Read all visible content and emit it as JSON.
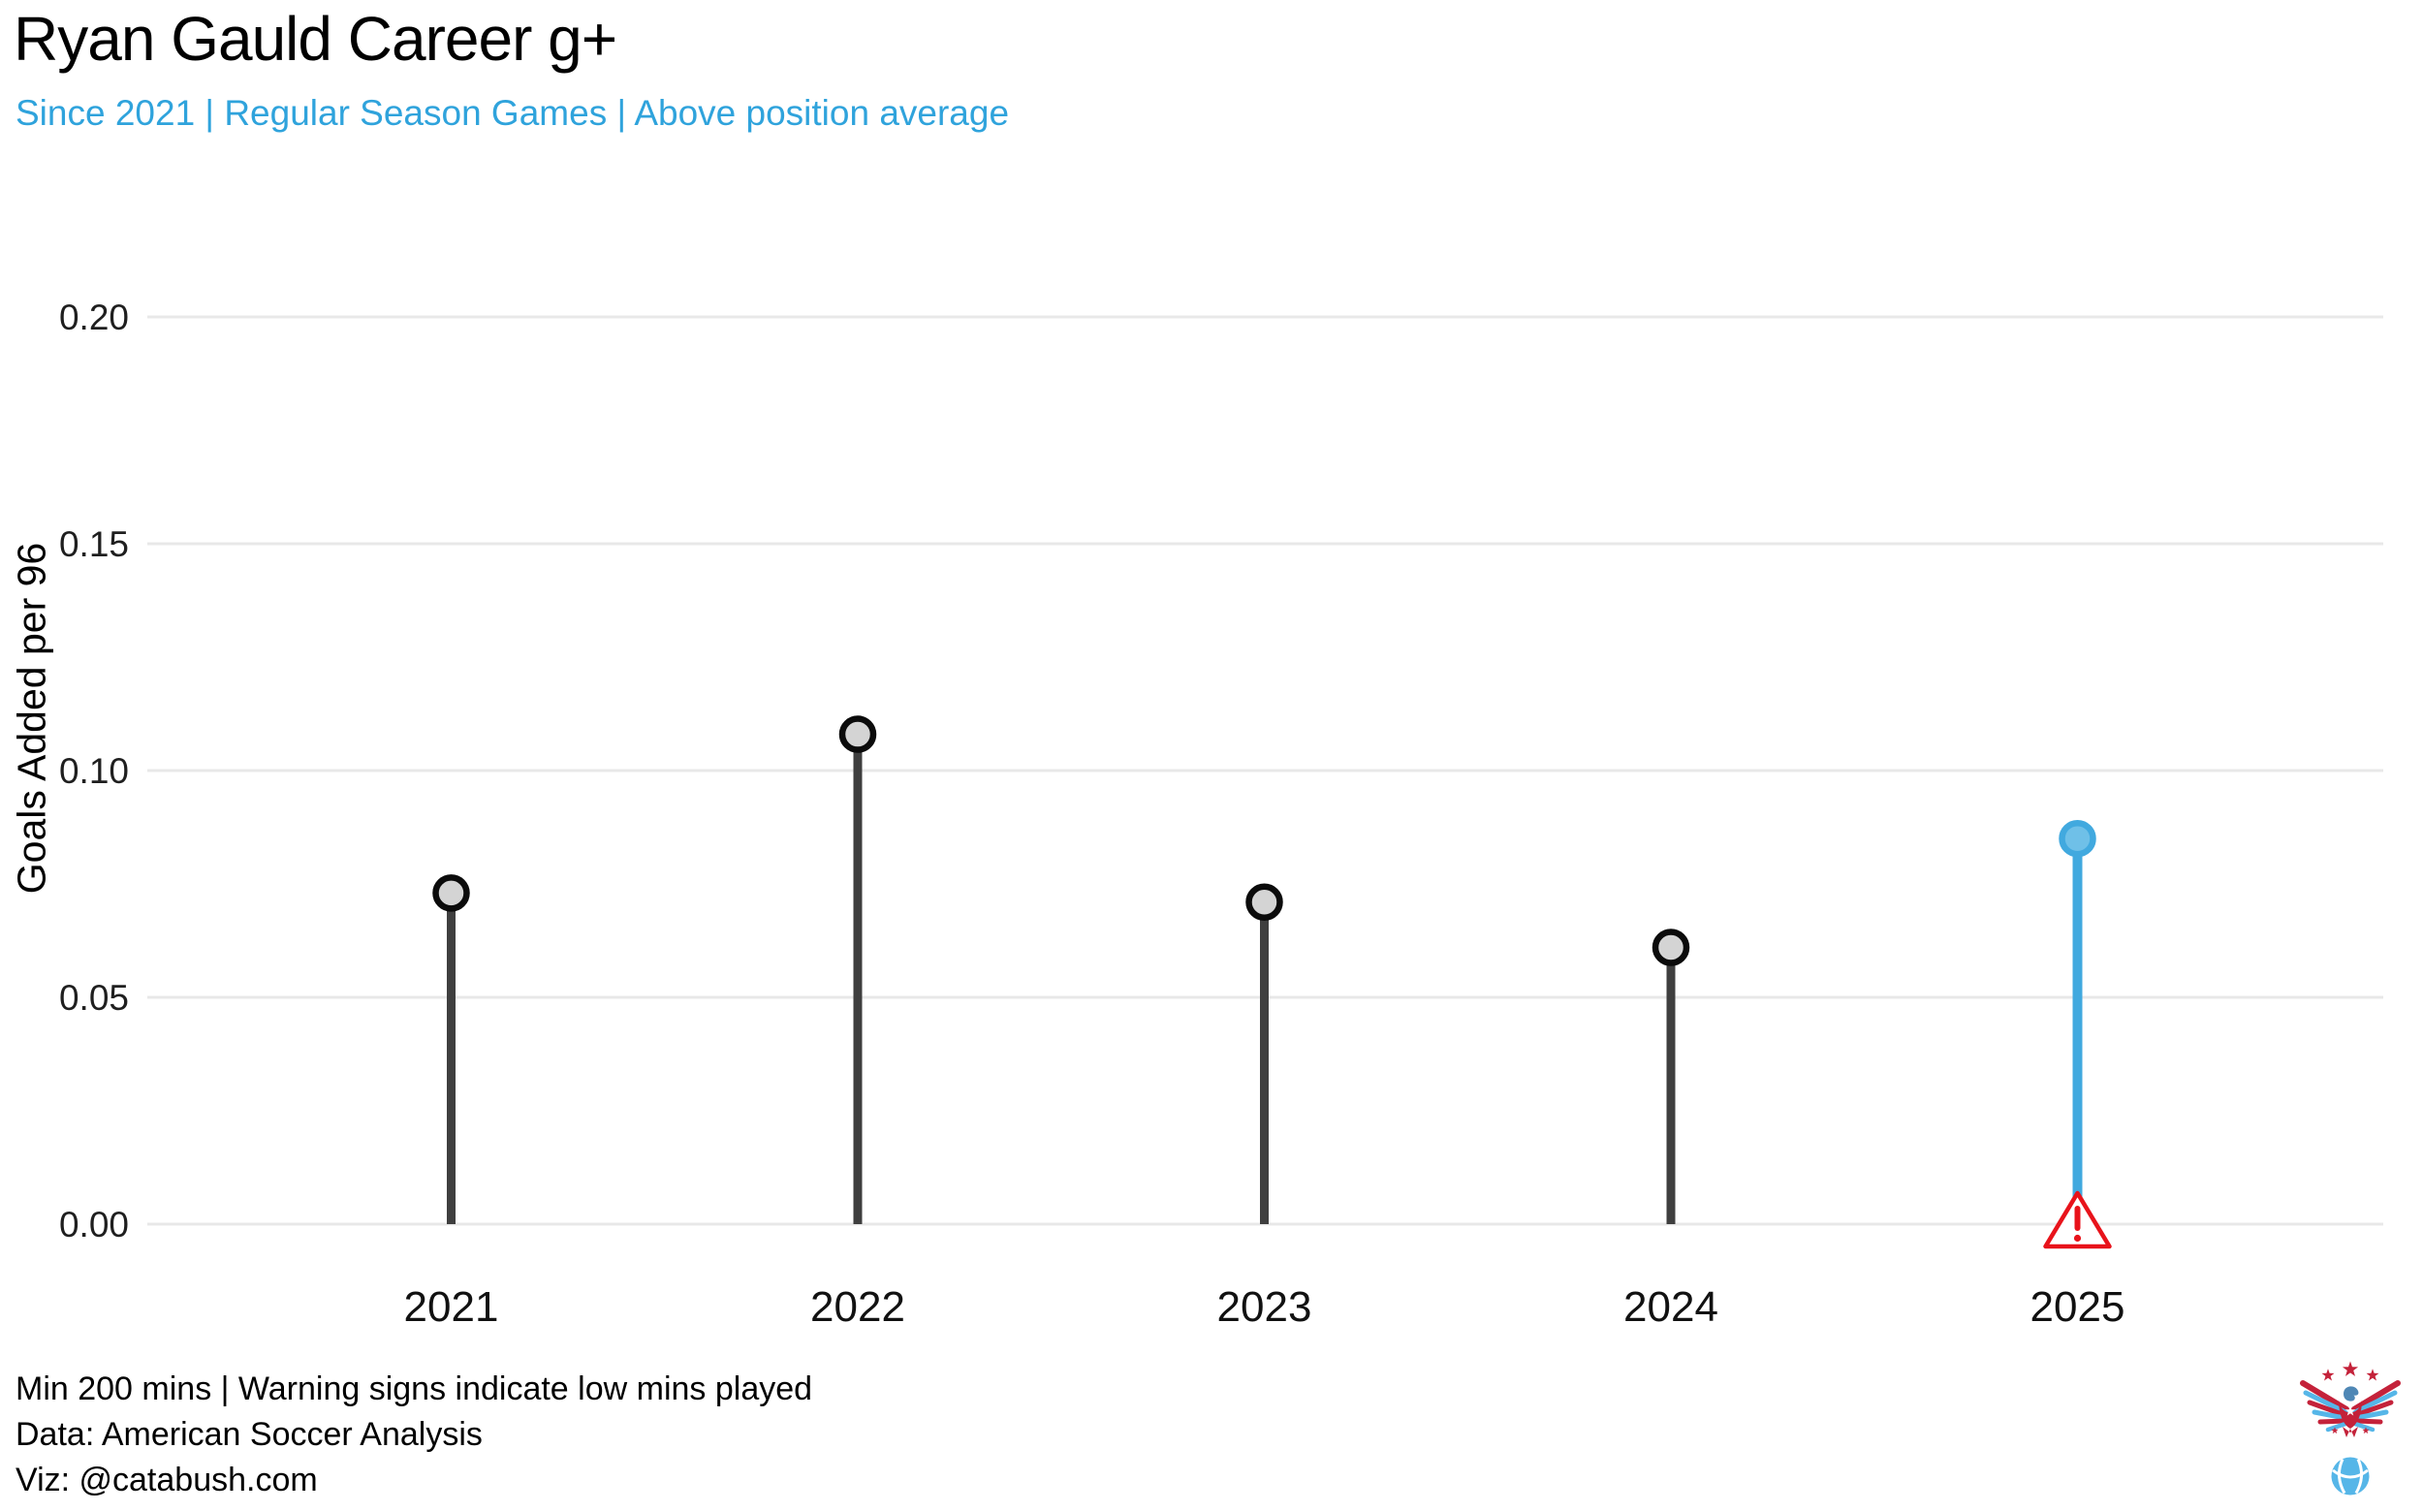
{
  "header": {
    "title": "Ryan Gauld Career g+",
    "subtitle": "Since 2021 | Regular Season Games | Above position average"
  },
  "footer": {
    "line1": "Min 200 mins | Warning signs indicate low mins played",
    "line2": "Data: American Soccer Analysis",
    "line3": "Viz: @catabush.com"
  },
  "chart_data": {
    "type": "lollipop",
    "title": "Ryan Gauld Career g+",
    "subtitle": "Since 2021 | Regular Season Games | Above position average",
    "categories": [
      "2021",
      "2022",
      "2023",
      "2024",
      "2025"
    ],
    "values": [
      0.073,
      0.108,
      0.071,
      0.061,
      0.085
    ],
    "highlight_index": 4,
    "warning_indices": [
      4
    ],
    "warning_meaning": "Warning signs indicate low mins played",
    "xlabel": "",
    "ylabel": "Goals Added per 96",
    "yticks": [
      0.0,
      0.05,
      0.1,
      0.15,
      0.2
    ],
    "ylim": [
      0,
      0.2
    ],
    "grid": "horizontal",
    "legend": "none"
  },
  "colors": {
    "subtitle_blue": "#2FA3DC",
    "gridline": "#E8E8E8",
    "axis_text": "#1F1F1F",
    "x_tick_text": "#111111",
    "stem_gray": "#3F3F3F",
    "point_gray_fill": "#D4D4D4",
    "point_gray_stroke": "#0B0B0B",
    "highlight_blue": "#41A9DF",
    "highlight_fill": "#6FC0E8",
    "warning_red": "#E8131B",
    "logo_red": "#C4223A",
    "logo_blue": "#56B6E8",
    "logo_head_blue": "#4F87B5"
  },
  "icons": {
    "warning": "warning-triangle-icon",
    "logo": "eagle-soccer-ball-logo"
  }
}
